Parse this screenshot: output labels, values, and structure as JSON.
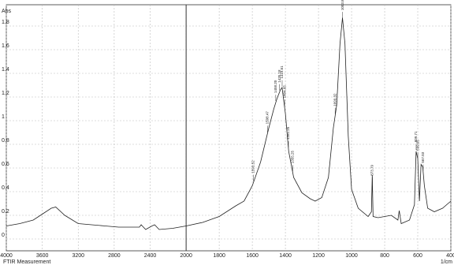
{
  "chart_data": {
    "type": "line",
    "y_label": "Abs",
    "footer": "FTIR Measurement",
    "x_unit": "1/cm",
    "xlim": [
      4000,
      400
    ],
    "xbreak": 2000,
    "xticks": [
      4000,
      3600,
      3200,
      2800,
      2400,
      2000,
      1800,
      1600,
      1400,
      1200,
      1000,
      800,
      600,
      400
    ],
    "ylim": [
      -0.1,
      1.98
    ],
    "yticks": [
      0,
      0.2,
      0.4,
      0.6,
      0.8,
      1,
      1.2,
      1.4,
      1.6,
      1.8
    ],
    "grid": true,
    "series": [
      {
        "color": "#222222",
        "x": [
          4000,
          3850,
          3700,
          3600,
          3500,
          3450,
          3350,
          3200,
          3050,
          2900,
          2750,
          2600,
          2520,
          2500,
          2450,
          2380,
          2350,
          2300,
          2150,
          2000,
          1900,
          1800,
          1700,
          1650,
          1600,
          1550,
          1500,
          1470,
          1450,
          1430,
          1420,
          1400,
          1380,
          1350,
          1300,
          1250,
          1220,
          1180,
          1140,
          1110,
          1090,
          1070,
          1055,
          1040,
          1020,
          1000,
          960,
          900,
          880,
          875,
          870,
          840,
          760,
          720,
          712,
          700,
          650,
          620,
          610,
          600,
          590,
          580,
          570,
          560,
          540,
          500,
          450,
          400
        ],
        "values": [
          0.11,
          0.13,
          0.16,
          0.21,
          0.26,
          0.27,
          0.2,
          0.13,
          0.12,
          0.11,
          0.1,
          0.1,
          0.1,
          0.12,
          0.08,
          0.11,
          0.12,
          0.08,
          0.09,
          0.11,
          0.14,
          0.19,
          0.28,
          0.32,
          0.45,
          0.65,
          0.94,
          1.1,
          1.19,
          1.26,
          1.28,
          1.06,
          0.74,
          0.52,
          0.39,
          0.34,
          0.32,
          0.35,
          0.52,
          0.94,
          1.13,
          1.65,
          1.87,
          1.65,
          0.87,
          0.42,
          0.26,
          0.19,
          0.23,
          0.54,
          0.19,
          0.18,
          0.2,
          0.16,
          0.24,
          0.13,
          0.16,
          0.29,
          0.74,
          0.68,
          0.32,
          0.63,
          0.61,
          0.45,
          0.26,
          0.23,
          0.26,
          0.32
        ]
      }
    ],
    "peaks": [
      {
        "x": 1593.52,
        "label": "1593.52"
      },
      {
        "x": 1508.47,
        "label": "1508.47"
      },
      {
        "x": 1458.2,
        "label": "1458.20"
      },
      {
        "x": 1435.18,
        "label": "1435.18"
      },
      {
        "x": 1419.61,
        "label": "1419.61"
      },
      {
        "x": 1404.65,
        "label": "1404.65"
      },
      {
        "x": 1381.25,
        "label": "1381.25"
      },
      {
        "x": 1355.25,
        "label": "1355.25"
      },
      {
        "x": 1099.32,
        "label": "1099.32"
      },
      {
        "x": 1053.83,
        "label": "1053.83"
      },
      {
        "x": 873.79,
        "label": "873.79"
      },
      {
        "x": 609.71,
        "label": "609.71"
      },
      {
        "x": 599.65,
        "label": "599.65"
      },
      {
        "x": 567.03,
        "label": "567.03"
      }
    ]
  }
}
